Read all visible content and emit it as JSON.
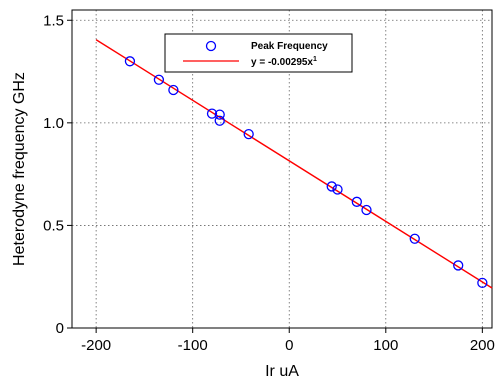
{
  "chart_data": {
    "type": "scatter",
    "xlabel": "Ir uA",
    "ylabel": "Heterodyne frequency GHz",
    "xlim": [
      -225,
      210
    ],
    "ylim": [
      0,
      1.55
    ],
    "x_ticks": [
      -200,
      -100,
      0,
      100,
      200
    ],
    "y_ticks": [
      0,
      0.5,
      1.0,
      1.5
    ],
    "x_tick_labels": [
      "-200",
      "-100",
      "0",
      "100",
      "200"
    ],
    "y_tick_labels": [
      "0",
      "0.5",
      "1.0",
      "1.5"
    ],
    "grid": true,
    "legend_position": "top-center",
    "series": [
      {
        "name": "Peak Frequency",
        "kind": "points",
        "color": "#0000ff",
        "x": [
          -165,
          -135,
          -120,
          -80,
          -72,
          -72,
          -42,
          44,
          50,
          70,
          80,
          130,
          175,
          200
        ],
        "y": [
          1.3,
          1.21,
          1.16,
          1.045,
          1.04,
          1.01,
          0.945,
          0.69,
          0.675,
          0.615,
          0.575,
          0.435,
          0.305,
          0.22
        ]
      },
      {
        "name": "y = -0.00295x",
        "name_superscript": "1",
        "kind": "line",
        "color": "#ff0000",
        "x": [
          -200,
          210
        ],
        "y": [
          1.405,
          0.195
        ]
      }
    ]
  }
}
